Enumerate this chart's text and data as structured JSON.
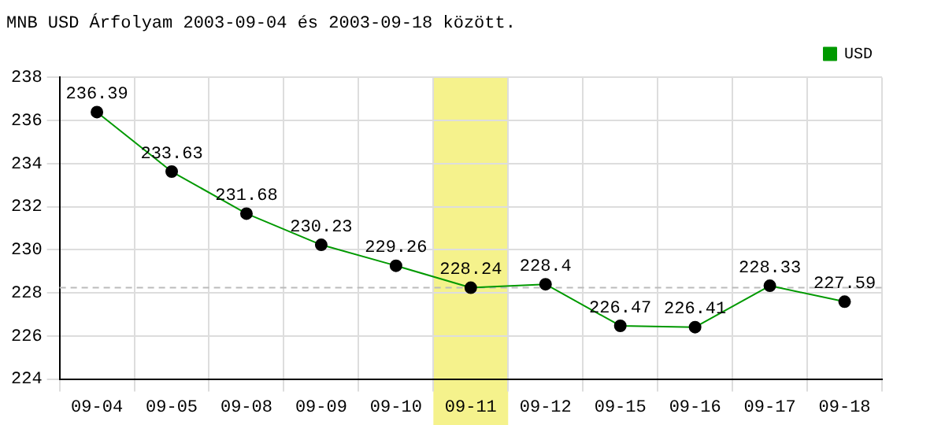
{
  "chart_data": {
    "type": "line",
    "title": "MNB USD Árfolyam 2003-09-04 és 2003-09-18 között.",
    "categories": [
      "09-04",
      "09-05",
      "09-08",
      "09-09",
      "09-10",
      "09-11",
      "09-12",
      "09-15",
      "09-16",
      "09-17",
      "09-18"
    ],
    "series": [
      {
        "name": "USD",
        "color": "#009900",
        "values": [
          236.39,
          233.63,
          231.68,
          230.23,
          229.26,
          228.24,
          228.4,
          226.47,
          226.41,
          228.33,
          227.59
        ]
      }
    ],
    "ylim": [
      224,
      238
    ],
    "yticks": [
      224,
      226,
      228,
      230,
      232,
      234,
      236,
      238
    ],
    "grid": true,
    "legend": "top right",
    "marker": "circle",
    "line_style": "solid",
    "data_labels": true,
    "ref_lines": [
      {
        "axis": "y",
        "value": 228.24,
        "color": "#bbbbbb",
        "line_style": "dashed"
      }
    ],
    "bands": [
      {
        "axis": "x",
        "from": "09-11",
        "to": "09-11",
        "color": "#f5f28c"
      }
    ]
  }
}
